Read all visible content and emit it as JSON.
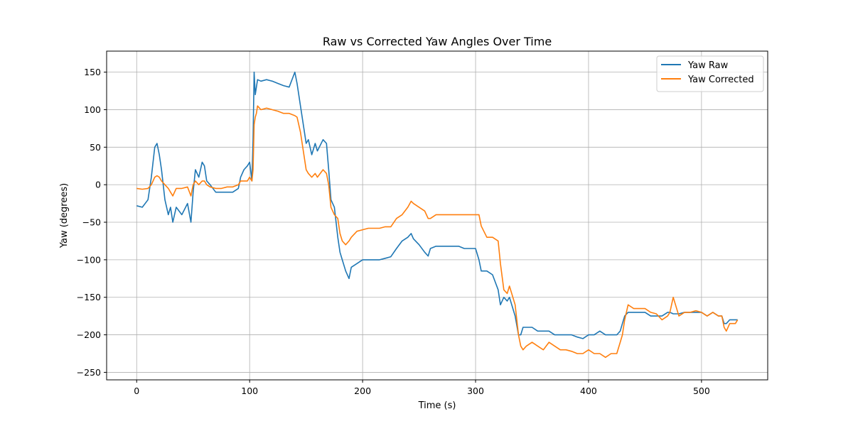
{
  "chart_data": {
    "type": "line",
    "title": "Raw vs Corrected Yaw Angles Over Time",
    "xlabel": "Time (s)",
    "ylabel": "Yaw (degrees)",
    "xlim": [
      -26.6,
      558.6
    ],
    "ylim": [
      -260,
      178
    ],
    "xticks": [
      0,
      100,
      200,
      300,
      400,
      500
    ],
    "yticks": [
      150,
      100,
      50,
      0,
      -50,
      -100,
      -150,
      -200,
      -250
    ],
    "xtick_labels": [
      "0",
      "100",
      "200",
      "300",
      "400",
      "500"
    ],
    "ytick_labels": [
      "150",
      "100",
      "50",
      "0",
      "−50",
      "−100",
      "−150",
      "−200",
      "−250"
    ],
    "grid": true,
    "legend_position": "top-right",
    "series": [
      {
        "name": "Yaw Raw",
        "color": "#1f77b4",
        "x": [
          0,
          5,
          10,
          13,
          16,
          18,
          20,
          22,
          25,
          28,
          30,
          32,
          35,
          40,
          45,
          48,
          50,
          52,
          55,
          58,
          60,
          62,
          65,
          70,
          75,
          80,
          85,
          90,
          92,
          95,
          98,
          100,
          102,
          103,
          104,
          105,
          106,
          107,
          110,
          115,
          120,
          125,
          130,
          135,
          140,
          142,
          145,
          150,
          152,
          155,
          158,
          160,
          165,
          168,
          170,
          172,
          175,
          178,
          180,
          182,
          185,
          188,
          190,
          195,
          200,
          205,
          210,
          215,
          220,
          225,
          230,
          235,
          240,
          243,
          245,
          250,
          255,
          258,
          260,
          265,
          270,
          275,
          280,
          285,
          290,
          295,
          300,
          303,
          305,
          310,
          315,
          320,
          322,
          325,
          328,
          330,
          335,
          338,
          340,
          342,
          345,
          350,
          355,
          360,
          365,
          370,
          375,
          380,
          385,
          390,
          395,
          400,
          405,
          410,
          415,
          420,
          425,
          428,
          430,
          432,
          435,
          440,
          445,
          450,
          455,
          460,
          465,
          470,
          472,
          475,
          480,
          485,
          490,
          495,
          500,
          505,
          510,
          515,
          518,
          520,
          522,
          525,
          530,
          532
        ],
        "y": [
          -28,
          -30,
          -20,
          10,
          50,
          55,
          40,
          20,
          -20,
          -40,
          -30,
          -50,
          -30,
          -40,
          -25,
          -50,
          -10,
          20,
          10,
          30,
          25,
          5,
          0,
          -10,
          -10,
          -10,
          -10,
          -5,
          10,
          20,
          25,
          30,
          5,
          60,
          150,
          120,
          130,
          140,
          138,
          140,
          138,
          135,
          132,
          130,
          150,
          135,
          105,
          55,
          60,
          40,
          55,
          45,
          60,
          55,
          20,
          -20,
          -30,
          -70,
          -90,
          -100,
          -115,
          -125,
          -110,
          -105,
          -100,
          -100,
          -100,
          -100,
          -98,
          -96,
          -85,
          -75,
          -70,
          -65,
          -72,
          -80,
          -90,
          -95,
          -85,
          -82,
          -82,
          -82,
          -82,
          -82,
          -85,
          -85,
          -85,
          -100,
          -115,
          -115,
          -120,
          -140,
          -160,
          -150,
          -155,
          -150,
          -175,
          -200,
          -200,
          -190,
          -190,
          -190,
          -195,
          -195,
          -195,
          -200,
          -200,
          -200,
          -200,
          -203,
          -205,
          -200,
          -200,
          -195,
          -200,
          -200,
          -200,
          -195,
          -185,
          -175,
          -170,
          -170,
          -170,
          -170,
          -175,
          -175,
          -175,
          -170,
          -170,
          -172,
          -172,
          -170,
          -170,
          -170,
          -170,
          -175,
          -170,
          -175,
          -175,
          -185,
          -185,
          -180,
          -180,
          -180
        ]
      },
      {
        "name": "Yaw Corrected",
        "color": "#ff7f0e",
        "x": [
          0,
          5,
          10,
          13,
          16,
          18,
          20,
          22,
          25,
          28,
          30,
          32,
          35,
          40,
          45,
          48,
          50,
          52,
          55,
          58,
          60,
          62,
          65,
          70,
          75,
          80,
          85,
          90,
          92,
          95,
          98,
          100,
          102,
          103,
          104,
          105,
          106,
          107,
          110,
          115,
          120,
          125,
          130,
          135,
          140,
          142,
          145,
          150,
          152,
          155,
          158,
          160,
          165,
          168,
          170,
          172,
          175,
          178,
          180,
          182,
          185,
          188,
          190,
          195,
          200,
          205,
          210,
          215,
          220,
          225,
          230,
          235,
          240,
          243,
          245,
          250,
          255,
          258,
          260,
          265,
          270,
          275,
          280,
          285,
          290,
          295,
          300,
          303,
          305,
          310,
          315,
          320,
          322,
          325,
          328,
          330,
          335,
          338,
          340,
          342,
          345,
          350,
          355,
          360,
          365,
          370,
          375,
          380,
          385,
          390,
          395,
          400,
          405,
          410,
          415,
          420,
          425,
          428,
          430,
          432,
          435,
          440,
          445,
          450,
          455,
          460,
          465,
          470,
          472,
          475,
          480,
          485,
          490,
          495,
          500,
          505,
          510,
          515,
          518,
          520,
          522,
          525,
          530,
          532
        ],
        "y": [
          -5,
          -6,
          -5,
          0,
          10,
          12,
          10,
          5,
          0,
          -5,
          -10,
          -15,
          -5,
          -5,
          -3,
          -15,
          0,
          5,
          0,
          5,
          5,
          0,
          -3,
          -5,
          -5,
          -3,
          -3,
          0,
          5,
          5,
          5,
          10,
          5,
          20,
          80,
          90,
          95,
          105,
          100,
          102,
          100,
          98,
          95,
          95,
          92,
          90,
          70,
          20,
          15,
          10,
          15,
          10,
          20,
          15,
          0,
          -30,
          -40,
          -45,
          -65,
          -75,
          -80,
          -75,
          -70,
          -62,
          -60,
          -58,
          -58,
          -58,
          -56,
          -56,
          -45,
          -40,
          -30,
          -22,
          -25,
          -30,
          -35,
          -45,
          -45,
          -40,
          -40,
          -40,
          -40,
          -40,
          -40,
          -40,
          -40,
          -40,
          -55,
          -70,
          -70,
          -75,
          -105,
          -140,
          -145,
          -135,
          -160,
          -200,
          -215,
          -220,
          -215,
          -210,
          -215,
          -220,
          -210,
          -215,
          -220,
          -220,
          -222,
          -225,
          -225,
          -220,
          -225,
          -225,
          -230,
          -225,
          -225,
          -210,
          -200,
          -180,
          -160,
          -165,
          -165,
          -165,
          -170,
          -172,
          -180,
          -175,
          -170,
          -150,
          -175,
          -170,
          -170,
          -168,
          -170,
          -175,
          -170,
          -175,
          -175,
          -190,
          -195,
          -185,
          -185,
          -180
        ]
      }
    ]
  }
}
